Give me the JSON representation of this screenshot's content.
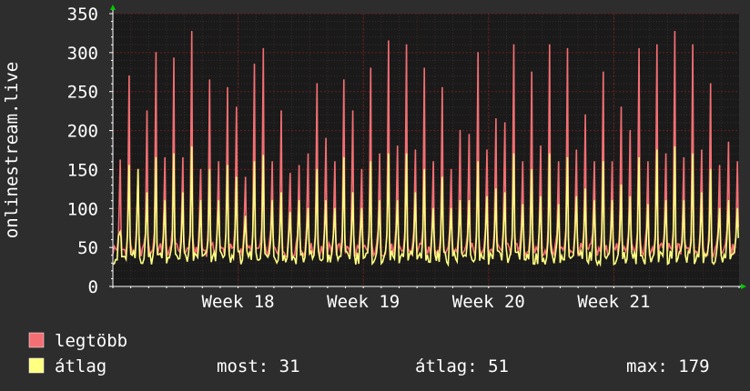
{
  "chart_data": {
    "type": "line",
    "ylabel": "onlinestream.live",
    "ylim": [
      0,
      350
    ],
    "y_ticks": [
      "0",
      "50",
      "100",
      "150",
      "200",
      "250",
      "300",
      "350"
    ],
    "x_ticks": [
      "Week 18",
      "Week 19",
      "Week 20",
      "Week 21"
    ],
    "grid": true,
    "colors": {
      "background": "#2d2d2d",
      "plot_bg": "#1a1a1a",
      "grid": "#6b1e1e",
      "axis": "#ffffff",
      "arrow": "#00cc00"
    },
    "series": [
      {
        "name": "legtöbb",
        "color": "#f46f73",
        "peaks": [
          162,
          270,
          150,
          225,
          300,
          165,
          293,
          165,
          327,
          150,
          265,
          160,
          255,
          230,
          140,
          285,
          305,
          160,
          225,
          145,
          155,
          170,
          260,
          190,
          160,
          265,
          225,
          150,
          280,
          170,
          315,
          180,
          310,
          175,
          280,
          160,
          255,
          150,
          200,
          195,
          300,
          175,
          215,
          210,
          310,
          160,
          275,
          180,
          310,
          160,
          305,
          175,
          220,
          160,
          275,
          160,
          230,
          200,
          305,
          160,
          310,
          170,
          327,
          165,
          310,
          175,
          260,
          155,
          185,
          160
        ]
      },
      {
        "name": "átlag",
        "color": "#ffff80",
        "peaks": [
          70,
          155,
          150,
          120,
          165,
          110,
          170,
          120,
          179,
          110,
          150,
          110,
          155,
          140,
          90,
          160,
          168,
          110,
          120,
          95,
          110,
          100,
          150,
          110,
          100,
          165,
          120,
          100,
          160,
          110,
          170,
          110,
          170,
          120,
          150,
          100,
          140,
          100,
          110,
          110,
          160,
          115,
          125,
          120,
          170,
          105,
          150,
          115,
          170,
          105,
          165,
          115,
          125,
          110,
          160,
          110,
          130,
          115,
          165,
          105,
          175,
          110,
          179,
          110,
          170,
          120,
          150,
          100,
          110,
          100
        ]
      }
    ],
    "legend": [
      {
        "name": "legtöbb",
        "color": "#f46f73"
      },
      {
        "name": "átlag",
        "color": "#ffff80"
      }
    ],
    "stats": {
      "most": "most: 31",
      "atlag": "átlag: 51",
      "max": "max: 179"
    }
  }
}
